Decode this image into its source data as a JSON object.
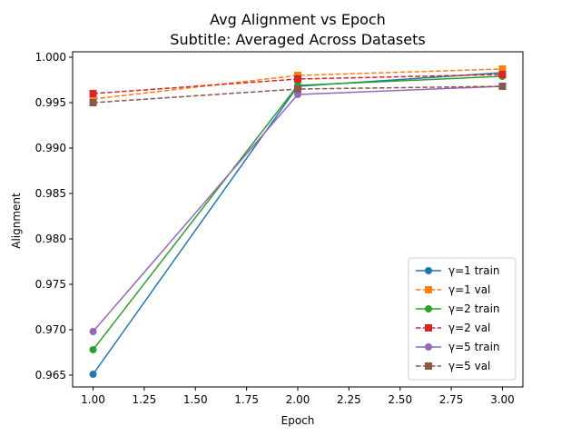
{
  "chart_data": {
    "type": "line",
    "title": "Avg Alignment vs Epoch",
    "subtitle": "Subtitle: Averaged Across Datasets",
    "xlabel": "Epoch",
    "ylabel": "Alignment",
    "xlim": [
      0.9,
      3.1
    ],
    "ylim": [
      0.9637,
      1.0006
    ],
    "x": [
      1,
      2,
      3
    ],
    "xticks": [
      1.0,
      1.25,
      1.5,
      1.75,
      2.0,
      2.25,
      2.5,
      2.75,
      3.0
    ],
    "xtick_labels": [
      "1.00",
      "1.25",
      "1.50",
      "1.75",
      "2.00",
      "2.25",
      "2.50",
      "2.75",
      "3.00"
    ],
    "yticks": [
      0.965,
      0.97,
      0.975,
      0.98,
      0.985,
      0.99,
      0.995,
      1.0
    ],
    "ytick_labels": [
      "0.965",
      "0.970",
      "0.975",
      "0.980",
      "0.985",
      "0.990",
      "0.995",
      "1.000"
    ],
    "grid": false,
    "legend_position": "lower-right",
    "series": [
      {
        "name": "γ=1 train",
        "values": [
          0.9651,
          0.9968,
          0.9983
        ],
        "color": "#1f77b4",
        "dashed": false,
        "marker": "circle"
      },
      {
        "name": "γ=1 val",
        "values": [
          0.9954,
          0.998,
          0.9987
        ],
        "color": "#ff7f0e",
        "dashed": true,
        "marker": "square"
      },
      {
        "name": "γ=2 train",
        "values": [
          0.9678,
          0.9969,
          0.9979
        ],
        "color": "#2ca02c",
        "dashed": false,
        "marker": "circle"
      },
      {
        "name": "γ=2 val",
        "values": [
          0.996,
          0.9976,
          0.9981
        ],
        "color": "#d62728",
        "dashed": true,
        "marker": "square"
      },
      {
        "name": "γ=5 train",
        "values": [
          0.9698,
          0.9959,
          0.9968
        ],
        "color": "#9467bd",
        "dashed": false,
        "marker": "circle"
      },
      {
        "name": "γ=5 val",
        "values": [
          0.995,
          0.9965,
          0.9968
        ],
        "color": "#8c564b",
        "dashed": true,
        "marker": "square"
      }
    ]
  }
}
